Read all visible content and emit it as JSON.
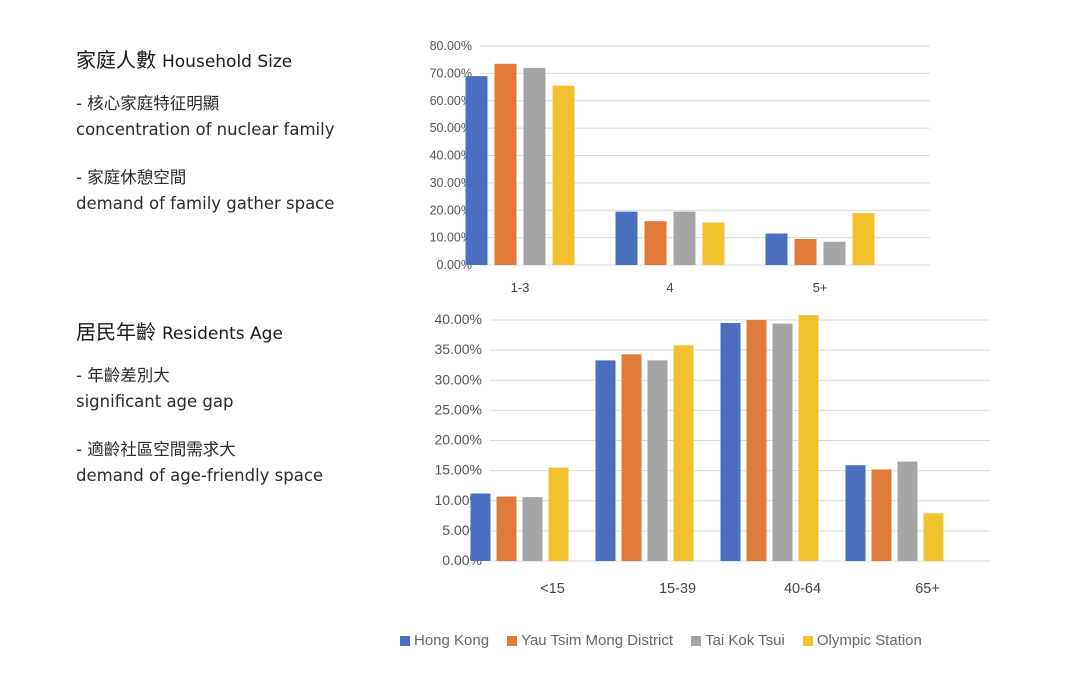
{
  "sections": [
    {
      "title_zh": "家庭人數",
      "title_en": "Household Size",
      "bullets": [
        {
          "zh": "- 核心家庭特征明顯",
          "en": "concentration of nuclear family"
        },
        {
          "zh": "- 家庭休憩空間",
          "en": "demand of family gather space"
        }
      ]
    },
    {
      "title_zh": "居民年齡",
      "title_en": "Residents Age",
      "bullets": [
        {
          "zh": "- 年齡差別大",
          "en": "significant age gap"
        },
        {
          "zh": "- 適齡社區空間需求大",
          "en": "demand of age-friendly space"
        }
      ]
    }
  ],
  "colors": {
    "Hong Kong": "#4a6fbf",
    "Yau Tsim Mong District": "#e07a3a",
    "Tai Kok Tsui": "#a5a5a5",
    "Olympic Station": "#f2c12e"
  },
  "legend": [
    "Hong Kong",
    "Yau Tsim Mong District",
    "Tai Kok Tsui",
    "Olympic Station"
  ],
  "chart_data": [
    {
      "type": "bar",
      "categories": [
        "1-3",
        "4",
        "5+"
      ],
      "yticks": [
        "0.00%",
        "10.00%",
        "20.00%",
        "30.00%",
        "40.00%",
        "50.00%",
        "60.00%",
        "70.00%",
        "80.00%"
      ],
      "ylim": [
        0,
        80
      ],
      "grid": true,
      "series": [
        {
          "name": "Hong Kong",
          "values": [
            69,
            19.5,
            11.5
          ]
        },
        {
          "name": "Yau Tsim Mong District",
          "values": [
            73.5,
            16,
            9.5
          ]
        },
        {
          "name": "Tai Kok Tsui",
          "values": [
            72,
            19.5,
            8.5
          ]
        },
        {
          "name": "Olympic Station",
          "values": [
            65.5,
            15.5,
            19
          ]
        }
      ]
    },
    {
      "type": "bar",
      "categories": [
        "<15",
        "15-39",
        "40-64",
        "65+"
      ],
      "yticks": [
        "0.00%",
        "5.00%",
        "10.00%",
        "15.00%",
        "20.00%",
        "25.00%",
        "30.00%",
        "35.00%",
        "40.00%"
      ],
      "ylim": [
        0,
        40
      ],
      "grid": true,
      "series": [
        {
          "name": "Hong Kong",
          "values": [
            11.2,
            33.3,
            39.5,
            15.9
          ]
        },
        {
          "name": "Yau Tsim Mong District",
          "values": [
            10.7,
            34.3,
            40.0,
            15.2
          ]
        },
        {
          "name": "Tai Kok Tsui",
          "values": [
            10.6,
            33.3,
            39.4,
            16.5
          ]
        },
        {
          "name": "Olympic Station",
          "values": [
            15.5,
            35.8,
            40.8,
            7.9
          ]
        }
      ]
    }
  ]
}
